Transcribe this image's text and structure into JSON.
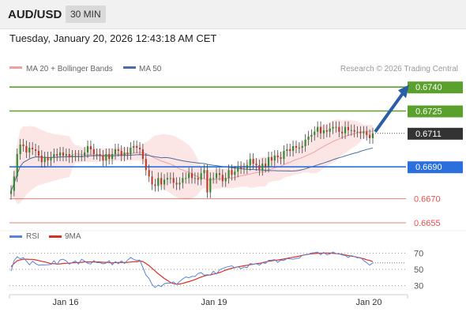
{
  "header": {
    "pair": "AUD/USD",
    "timeframe": "30 MIN",
    "datetime": "Tuesday, January 20, 2026 12:43:18 AM CET"
  },
  "colors": {
    "target": "#5aa02c",
    "pivot": "#2a6fdb",
    "support": "#e05252",
    "current": "#333333",
    "up_candle": "#2e8b2e",
    "down_candle": "#c0392b",
    "band_fill": "#fbdcdc",
    "ma20": "#f0a0a0",
    "ma50": "#4a6fa5",
    "rsi": "#5b84d6",
    "rsi_ma": "#d93025",
    "arrow": "#2c5ea8"
  },
  "chart_data": [
    {
      "type": "candlestick",
      "legend": [
        "MA 20 + Bollinger Bands",
        "MA 50"
      ],
      "watermark": "Research © 2026 Trading Central",
      "ylim": [
        0.6652,
        0.675
      ],
      "x_ticks": [
        "Jan 16",
        "Jan 19",
        "Jan 20"
      ],
      "levels": [
        {
          "value": 0.674,
          "label": "0.6740",
          "kind": "target"
        },
        {
          "value": 0.6725,
          "label": "0.6725",
          "kind": "target"
        },
        {
          "value": 0.6711,
          "label": "0.6711",
          "kind": "current"
        },
        {
          "value": 0.669,
          "label": "0.6690",
          "kind": "pivot"
        },
        {
          "value": 0.667,
          "label": "0.6670",
          "kind": "support"
        },
        {
          "value": 0.6655,
          "label": "0.6655",
          "kind": "support"
        }
      ],
      "arrow": {
        "from": 0.6711,
        "to": 0.674
      },
      "closes": [
        0.6675,
        0.6684,
        0.6698,
        0.6704,
        0.6703,
        0.6699,
        0.6702,
        0.6701,
        0.67,
        0.6697,
        0.6693,
        0.6696,
        0.6694,
        0.6696,
        0.6698,
        0.6697,
        0.6699,
        0.6697,
        0.6698,
        0.6696,
        0.6697,
        0.6697,
        0.6697,
        0.6697,
        0.6699,
        0.6703,
        0.6701,
        0.6698,
        0.6698,
        0.6697,
        0.6694,
        0.6698,
        0.6695,
        0.6698,
        0.6701,
        0.67,
        0.6697,
        0.6699,
        0.6698,
        0.6702,
        0.6703,
        0.6702,
        0.6701,
        0.6695,
        0.6688,
        0.6684,
        0.6679,
        0.6678,
        0.6683,
        0.6679,
        0.6682,
        0.6683,
        0.6683,
        0.668,
        0.6679,
        0.668,
        0.6683,
        0.6683,
        0.6686,
        0.6683,
        0.6683,
        0.6682,
        0.6686,
        0.6688,
        0.6674,
        0.6683,
        0.6683,
        0.6686,
        0.6685,
        0.6681,
        0.6683,
        0.6688,
        0.6685,
        0.6687,
        0.669,
        0.6689,
        0.6689,
        0.6691,
        0.6695,
        0.6692,
        0.6691,
        0.6688,
        0.6692,
        0.669,
        0.6696,
        0.6694,
        0.6697,
        0.6696,
        0.6695,
        0.67,
        0.6701,
        0.67,
        0.6703,
        0.6702,
        0.6702,
        0.6703,
        0.6707,
        0.6709,
        0.671,
        0.6712,
        0.6715,
        0.6711,
        0.6713,
        0.6712,
        0.6714,
        0.6715,
        0.6715,
        0.6712,
        0.6711,
        0.6715,
        0.6713,
        0.6713,
        0.6712,
        0.6712,
        0.6711,
        0.6712,
        0.671,
        0.6708,
        0.6711
      ]
    },
    {
      "type": "line",
      "legend": [
        "RSI",
        "9MA"
      ],
      "ylim": [
        20,
        80
      ],
      "y_ticks": [
        70,
        50,
        30
      ],
      "rsi": [
        48.0,
        60.8,
        65.6,
        63.0,
        64.4,
        60.1,
        55.6,
        60.0,
        57.1,
        55.1,
        55.6,
        55.4,
        55.7,
        56.0,
        60.6,
        56.1,
        61.6,
        62.5,
        60.4,
        56.4,
        58.5,
        60.3,
        56.6,
        62.4,
        60.1,
        57.5,
        56.6,
        60.8,
        58.2,
        58.2,
        56.8,
        57.8,
        60.5,
        55.6,
        59.7,
        57.0,
        60.4,
        57.2,
        61.3,
        64.5,
        62.3,
        60.9,
        61.4,
        52.4,
        43.0,
        39.0,
        31.5,
        27.7,
        30.6,
        28.9,
        32.5,
        33.3,
        33.2,
        34.7,
        31.6,
        35.2,
        38.4,
        40.7,
        39.7,
        41.5,
        41.3,
        44.9,
        46.0,
        42.9,
        43.5,
        43.0,
        47.8,
        44.3,
        49.4,
        51.1,
        52.6,
        53.6,
        54.4,
        51.9,
        53.5,
        50.8,
        52.9,
        52.2,
        57.2,
        56.3,
        57.2,
        55.2,
        58.2,
        57.4,
        61.1,
        61.3,
        61.9,
        58.6,
        61.4,
        60.9,
        63.2,
        62.9,
        62.5,
        63.4,
        63.7,
        67.3,
        67.9,
        68.3,
        70.0,
        70.4,
        71.2,
        67.8,
        70.8,
        67.8,
        69.0,
        71.4,
        69.4,
        69.4,
        67.6,
        67.0,
        64.5,
        66.9,
        65.8,
        64.1,
        64.5,
        60.8,
        58.3,
        55.1,
        58.0
      ],
      "ma9": [
        53.3,
        57.4,
        60.6,
        61.7,
        62.4,
        62.5,
        62.3,
        62.3,
        61.6,
        60.8,
        59.9,
        59.1,
        58.1,
        57.0,
        57.1,
        56.5,
        56.8,
        57.3,
        57.5,
        57.6,
        57.9,
        58.3,
        58.3,
        58.6,
        59.3,
        59.1,
        59.1,
        59.1,
        59.1,
        59.0,
        58.7,
        58.6,
        58.4,
        57.8,
        58.4,
        58.3,
        58.6,
        58.3,
        58.6,
        59.0,
        59.5,
        59.3,
        60.3,
        59.6,
        57.3,
        54.6,
        51.4,
        48.0,
        44.7,
        41.8,
        38.8,
        36.5,
        34.0,
        32.5,
        31.8,
        32.1,
        32.9,
        34.0,
        35.0,
        36.3,
        37.5,
        39.2,
        40.6,
        41.9,
        42.8,
        43.2,
        44.3,
        45.0,
        46.1,
        47.6,
        49.0,
        50.3,
        51.4,
        52.2,
        53.2,
        53.8,
        54.5,
        55.0,
        55.8,
        56.3,
        57.1,
        57.4,
        58.3,
        59.1,
        60.0,
        60.5,
        61.1,
        61.5,
        62.1,
        62.7,
        63.5,
        64.2,
        64.8,
        65.5,
        66.3,
        67.2,
        67.9,
        68.6,
        69.1,
        69.5,
        69.7,
        69.8,
        69.9,
        70.0,
        69.9,
        69.7,
        69.4,
        69.0,
        68.4,
        67.7,
        66.9,
        66.3,
        65.7,
        64.8,
        63.8,
        63.1,
        61.8,
        60.9,
        59.5
      ]
    }
  ]
}
